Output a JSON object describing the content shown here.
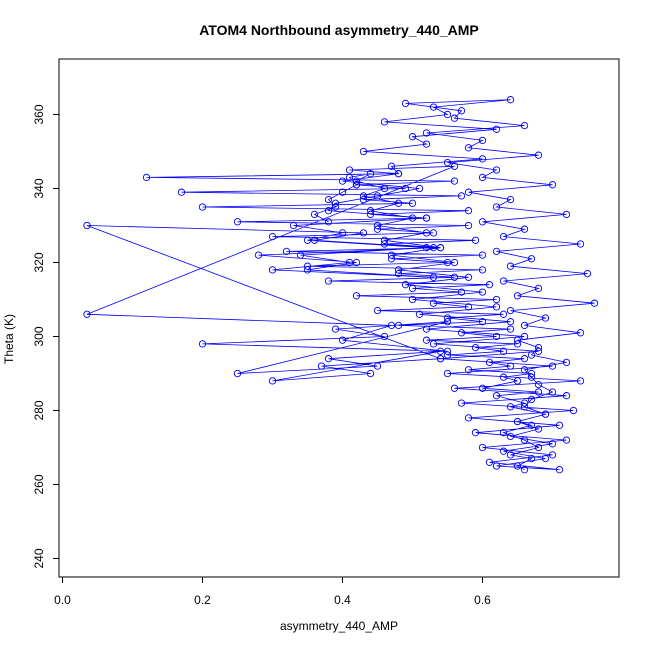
{
  "chart_data": {
    "type": "scatter",
    "title": "ATOM4 Northbound asymmetry_440_AMP",
    "xlabel": "asymmetry_440_AMP",
    "ylabel": "Theta (K)",
    "xlim": [
      -0.005,
      0.795
    ],
    "ylim": [
      235,
      375
    ],
    "x_ticks": [
      {
        "value": 0.0,
        "label": "0.0"
      },
      {
        "value": 0.2,
        "label": "0.2"
      },
      {
        "value": 0.4,
        "label": "0.4"
      },
      {
        "value": 0.6,
        "label": "0.6"
      }
    ],
    "y_ticks": [
      {
        "value": 240,
        "label": "240"
      },
      {
        "value": 260,
        "label": "260"
      },
      {
        "value": 280,
        "label": "280"
      },
      {
        "value": 300,
        "label": "300"
      },
      {
        "value": 320,
        "label": "320"
      },
      {
        "value": 340,
        "label": "340"
      },
      {
        "value": 360,
        "label": "360"
      }
    ],
    "grid": false,
    "legend": "none",
    "marker": "open-circle",
    "connected": true,
    "color": "#0000ff",
    "series": [
      {
        "x": [
          0.66,
          0.65,
          0.67,
          0.64,
          0.68,
          0.66,
          0.63,
          0.67,
          0.65,
          0.69,
          0.64,
          0.66,
          0.62,
          0.68,
          0.6,
          0.65,
          0.63,
          0.67,
          0.58,
          0.64,
          0.61,
          0.66,
          0.55,
          0.63,
          0.59,
          0.65,
          0.52,
          0.62,
          0.57,
          0.64,
          0.48,
          0.6,
          0.55,
          0.63,
          0.45,
          0.58,
          0.53,
          0.62,
          0.42,
          0.57,
          0.5,
          0.61,
          0.38,
          0.56,
          0.48,
          0.6,
          0.35,
          0.55,
          0.47,
          0.6,
          0.32,
          0.54,
          0.46,
          0.59,
          0.3,
          0.53,
          0.45,
          0.58,
          0.25,
          0.52,
          0.44,
          0.58,
          0.2,
          0.5,
          0.43,
          0.57,
          0.17,
          0.49,
          0.42,
          0.56,
          0.12,
          0.48,
          0.41,
          0.56,
          0.035,
          0.47,
          0.4,
          0.55,
          0.2,
          0.46,
          0.39,
          0.55,
          0.25,
          0.45,
          0.38,
          0.54,
          0.3,
          0.44,
          0.37,
          0.54,
          0.035,
          0.43,
          0.36,
          0.53,
          0.28,
          0.42,
          0.35,
          0.53,
          0.3,
          0.41,
          0.34,
          0.52,
          0.35,
          0.4,
          0.33,
          0.52,
          0.38,
          0.39,
          0.45,
          0.51,
          0.4,
          0.48,
          0.47,
          0.6,
          0.43,
          0.52,
          0.5,
          0.62,
          0.46,
          0.55,
          0.53,
          0.64,
          0.49,
          0.57,
          0.56,
          0.66,
          0.52,
          0.6,
          0.58,
          0.68,
          0.55,
          0.62,
          0.6,
          0.7,
          0.58,
          0.64,
          0.62,
          0.72,
          0.6,
          0.66,
          0.63,
          0.74,
          0.62,
          0.67,
          0.64,
          0.75,
          0.63,
          0.68,
          0.65,
          0.76,
          0.64,
          0.69,
          0.66,
          0.74,
          0.65,
          0.68,
          0.67,
          0.72,
          0.66,
          0.67,
          0.68,
          0.7,
          0.67,
          0.66,
          0.69,
          0.65,
          0.68,
          0.64,
          0.7,
          0.63,
          0.69,
          0.62,
          0.71,
          0.61,
          0.7,
          0.6,
          0.72,
          0.59,
          0.71,
          0.58,
          0.73,
          0.57,
          0.72,
          0.56,
          0.74,
          0.55,
          0.7,
          0.54,
          0.68,
          0.53,
          0.66,
          0.52,
          0.64,
          0.51,
          0.62,
          0.5,
          0.6,
          0.49,
          0.58,
          0.48,
          0.56,
          0.47,
          0.54,
          0.46,
          0.52,
          0.45,
          0.5,
          0.44,
          0.48,
          0.43,
          0.46,
          0.42,
          0.44,
          0.41,
          0.42,
          0.4,
          0.38,
          0.39,
          0.36,
          0.38
        ],
        "y": [
          264,
          265,
          267,
          268,
          270,
          272,
          274,
          276,
          277,
          279,
          281,
          282,
          284,
          285,
          286,
          288,
          289,
          290,
          291,
          292,
          293,
          294,
          295,
          296,
          297,
          298,
          299,
          300,
          301,
          302,
          303,
          304,
          305,
          306,
          307,
          308,
          309,
          310,
          311,
          312,
          313,
          314,
          315,
          316,
          317,
          318,
          319,
          320,
          321,
          322,
          323,
          324,
          325,
          326,
          327,
          328,
          329,
          330,
          331,
          332,
          333,
          334,
          335,
          336,
          337,
          338,
          339,
          340,
          341,
          342,
          343,
          344,
          345,
          346,
          306,
          303,
          299,
          296,
          298,
          300,
          302,
          304,
          290,
          292,
          294,
          296,
          288,
          290,
          292,
          294,
          330,
          328,
          326,
          324,
          322,
          320,
          318,
          316,
          318,
          320,
          322,
          324,
          326,
          328,
          330,
          332,
          334,
          336,
          338,
          340,
          342,
          344,
          346,
          348,
          350,
          352,
          354,
          356,
          358,
          360,
          362,
          364,
          363,
          361,
          359,
          357,
          355,
          353,
          351,
          349,
          347,
          345,
          343,
          341,
          339,
          337,
          335,
          333,
          331,
          329,
          327,
          325,
          323,
          321,
          319,
          317,
          315,
          313,
          311,
          309,
          307,
          305,
          303,
          301,
          299,
          297,
          295,
          293,
          291,
          289,
          287,
          285,
          283,
          281,
          279,
          277,
          275,
          273,
          271,
          269,
          267,
          265,
          264,
          266,
          268,
          270,
          272,
          274,
          276,
          278,
          280,
          282,
          284,
          286,
          288,
          290,
          292,
          294,
          296,
          298,
          300,
          302,
          304,
          306,
          308,
          310,
          312,
          314,
          316,
          318,
          320,
          322,
          324,
          326,
          328,
          330,
          332,
          334,
          336,
          338,
          340,
          342,
          344,
          343,
          341,
          339,
          337,
          335,
          333,
          331
        ]
      }
    ]
  }
}
